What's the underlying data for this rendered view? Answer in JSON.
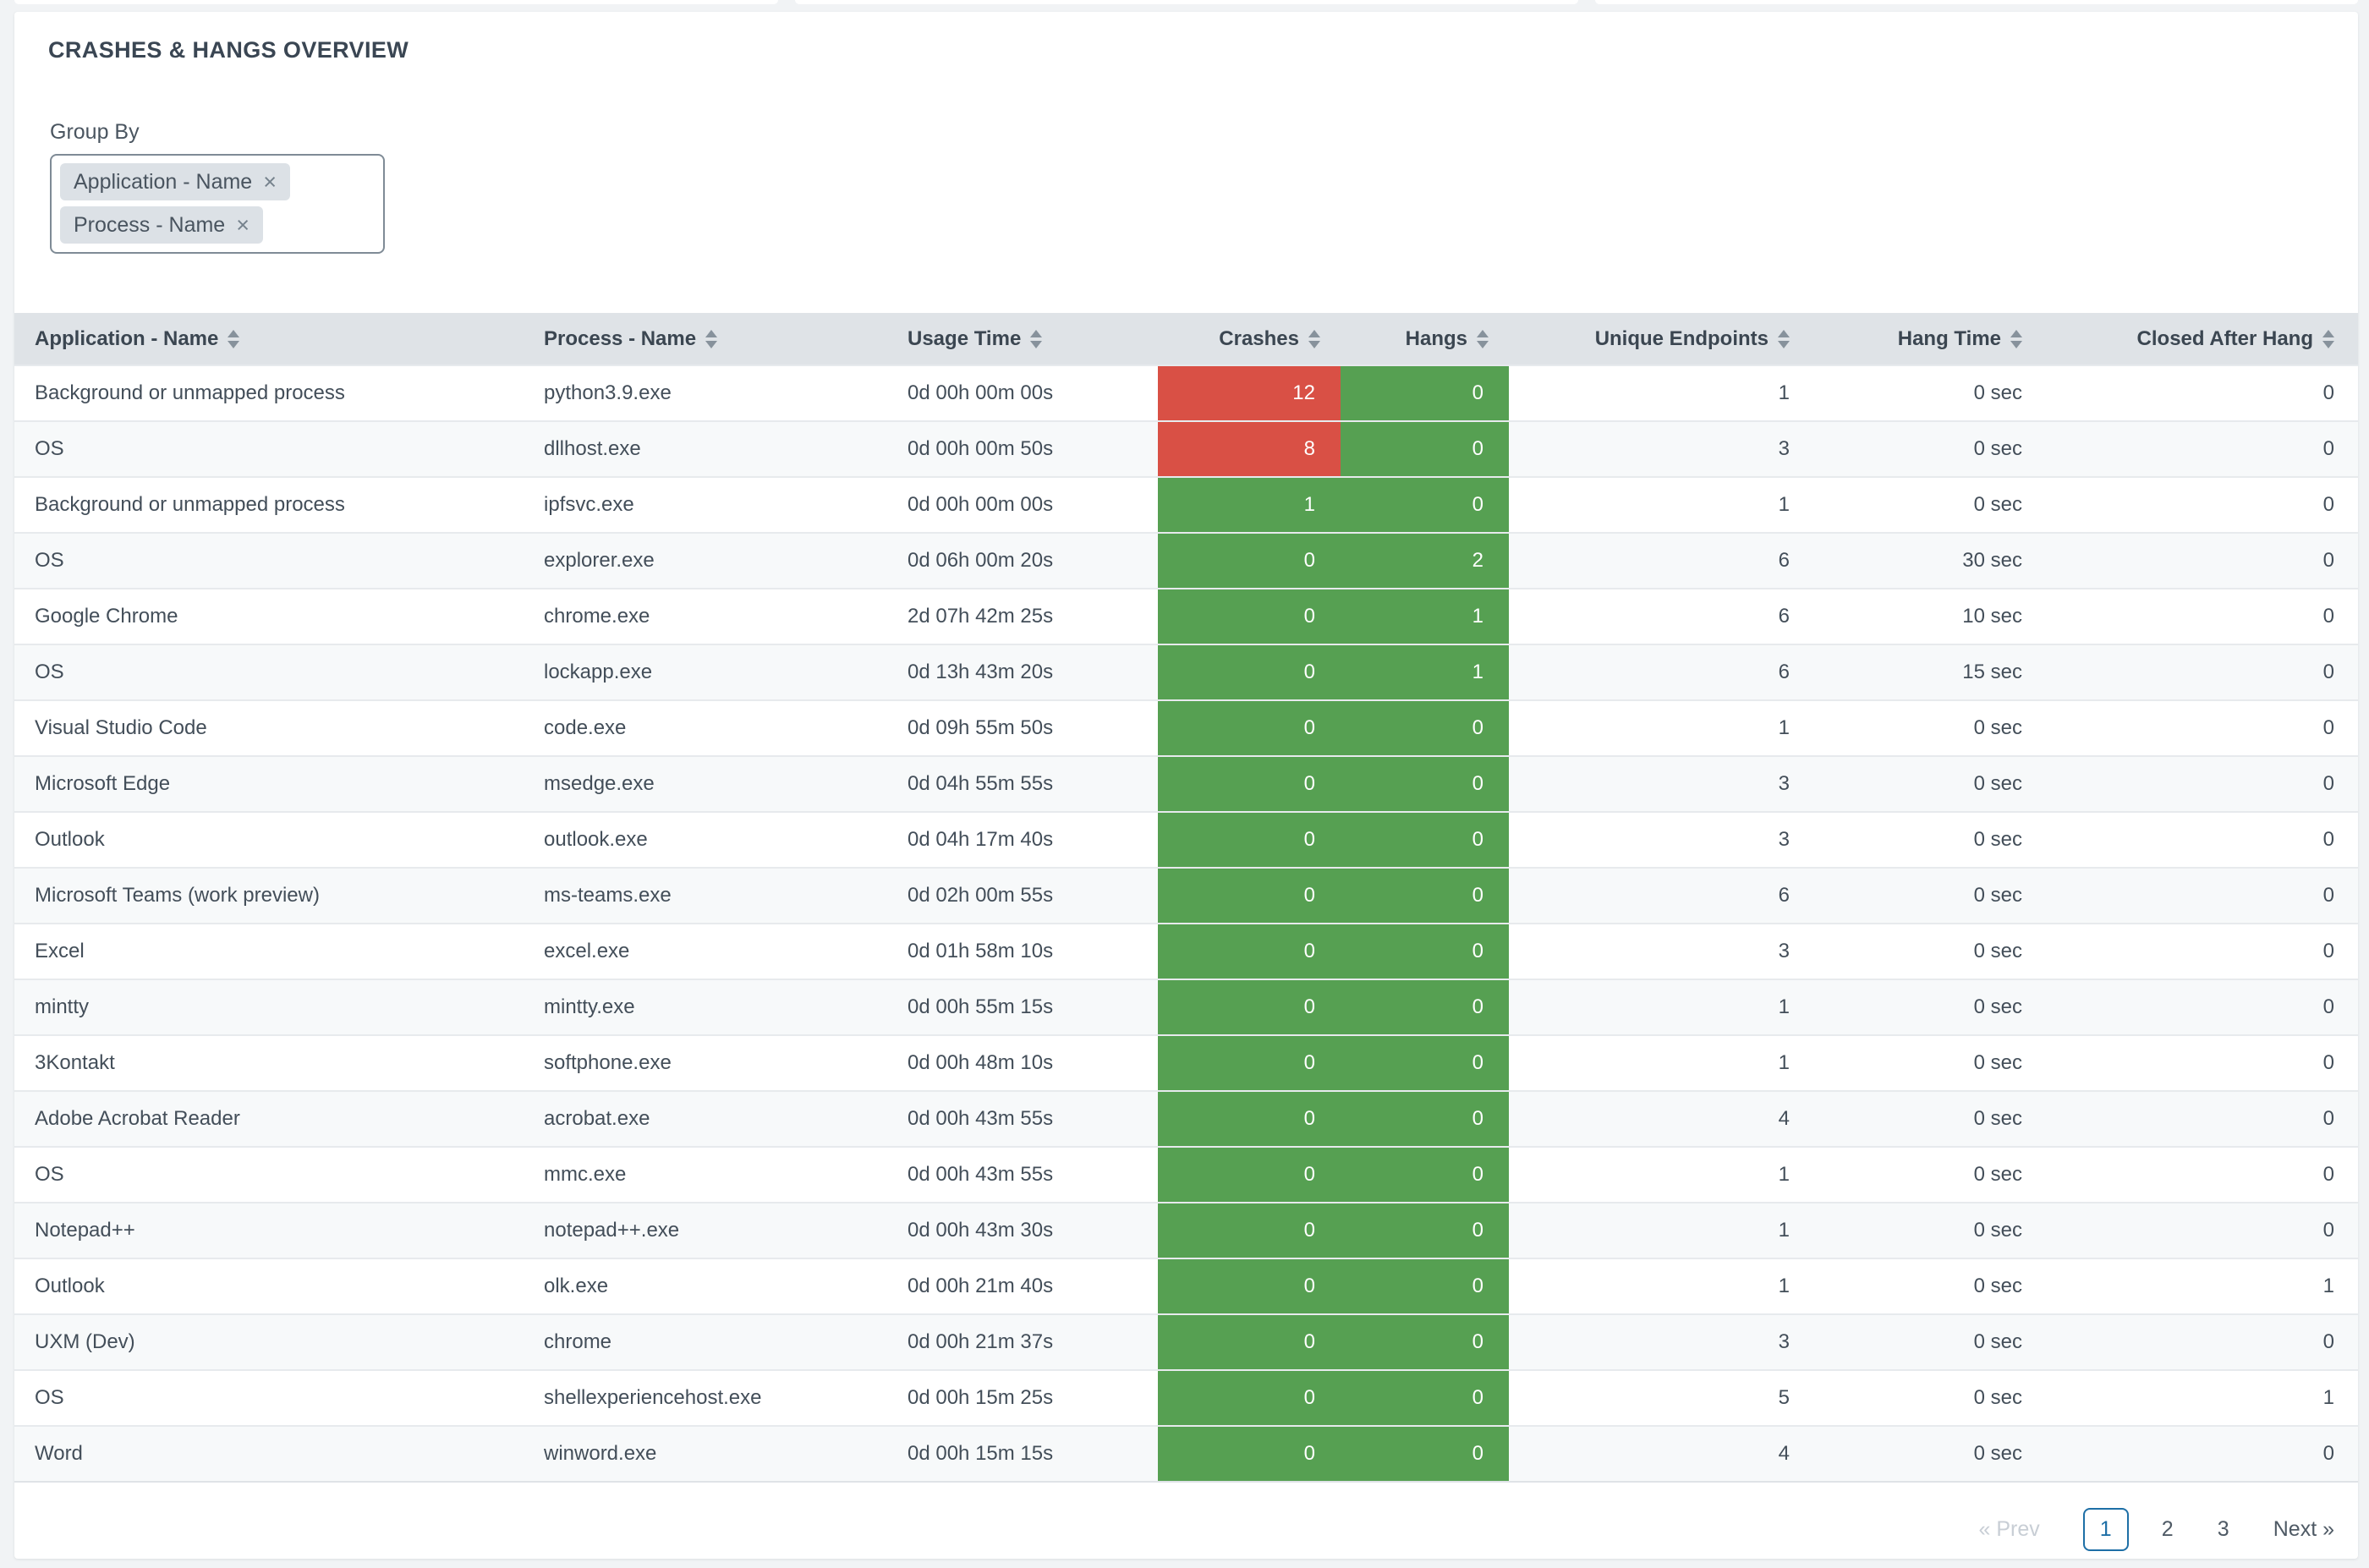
{
  "panel": {
    "title": "CRASHES & HANGS OVERVIEW"
  },
  "group_by": {
    "label": "Group By",
    "tags": [
      {
        "label": "Application - Name",
        "remove_icon": "×"
      },
      {
        "label": "Process - Name",
        "remove_icon": "×"
      }
    ]
  },
  "table": {
    "columns": [
      {
        "label": "Application - Name",
        "key": "application-name",
        "field": "application",
        "align": "left",
        "sortable": true
      },
      {
        "label": "Process - Name",
        "key": "process-name",
        "field": "process",
        "align": "left",
        "sortable": true
      },
      {
        "label": "Usage Time",
        "key": "usage-time",
        "field": "usage_time",
        "align": "left",
        "sortable": true
      },
      {
        "label": "Crashes",
        "key": "crashes",
        "field": "crashes",
        "align": "right",
        "sortable": true
      },
      {
        "label": "Hangs",
        "key": "hangs",
        "field": "hangs",
        "align": "right",
        "sortable": true
      },
      {
        "label": "Unique Endpoints",
        "key": "unique-endpoints",
        "field": "unique_endpoints",
        "align": "right",
        "sortable": true
      },
      {
        "label": "Hang Time",
        "key": "hang-time",
        "field": "hang_time",
        "align": "right",
        "sortable": true
      },
      {
        "label": "Closed After Hang",
        "key": "closed-after-hang",
        "field": "closed_after_hang",
        "align": "right",
        "sortable": true
      }
    ],
    "rows": [
      {
        "application": "Background or unmapped process",
        "process": "python3.9.exe",
        "usage_time": "0d 00h 00m 00s",
        "crashes": "12",
        "crashes_status": "alert",
        "hangs": "0",
        "hangs_status": "ok",
        "unique_endpoints": "1",
        "hang_time": "0 sec",
        "closed_after_hang": "0"
      },
      {
        "application": "OS",
        "process": "dllhost.exe",
        "usage_time": "0d 00h 00m 50s",
        "crashes": "8",
        "crashes_status": "alert",
        "hangs": "0",
        "hangs_status": "ok",
        "unique_endpoints": "3",
        "hang_time": "0 sec",
        "closed_after_hang": "0"
      },
      {
        "application": "Background or unmapped process",
        "process": "ipfsvc.exe",
        "usage_time": "0d 00h 00m 00s",
        "crashes": "1",
        "crashes_status": "ok",
        "hangs": "0",
        "hangs_status": "ok",
        "unique_endpoints": "1",
        "hang_time": "0 sec",
        "closed_after_hang": "0"
      },
      {
        "application": "OS",
        "process": "explorer.exe",
        "usage_time": "0d 06h 00m 20s",
        "crashes": "0",
        "crashes_status": "ok",
        "hangs": "2",
        "hangs_status": "ok",
        "unique_endpoints": "6",
        "hang_time": "30 sec",
        "closed_after_hang": "0"
      },
      {
        "application": "Google Chrome",
        "process": "chrome.exe",
        "usage_time": "2d 07h 42m 25s",
        "crashes": "0",
        "crashes_status": "ok",
        "hangs": "1",
        "hangs_status": "ok",
        "unique_endpoints": "6",
        "hang_time": "10 sec",
        "closed_after_hang": "0"
      },
      {
        "application": "OS",
        "process": "lockapp.exe",
        "usage_time": "0d 13h 43m 20s",
        "crashes": "0",
        "crashes_status": "ok",
        "hangs": "1",
        "hangs_status": "ok",
        "unique_endpoints": "6",
        "hang_time": "15 sec",
        "closed_after_hang": "0"
      },
      {
        "application": "Visual Studio Code",
        "process": "code.exe",
        "usage_time": "0d 09h 55m 50s",
        "crashes": "0",
        "crashes_status": "ok",
        "hangs": "0",
        "hangs_status": "ok",
        "unique_endpoints": "1",
        "hang_time": "0 sec",
        "closed_after_hang": "0"
      },
      {
        "application": "Microsoft Edge",
        "process": "msedge.exe",
        "usage_time": "0d 04h 55m 55s",
        "crashes": "0",
        "crashes_status": "ok",
        "hangs": "0",
        "hangs_status": "ok",
        "unique_endpoints": "3",
        "hang_time": "0 sec",
        "closed_after_hang": "0"
      },
      {
        "application": "Outlook",
        "process": "outlook.exe",
        "usage_time": "0d 04h 17m 40s",
        "crashes": "0",
        "crashes_status": "ok",
        "hangs": "0",
        "hangs_status": "ok",
        "unique_endpoints": "3",
        "hang_time": "0 sec",
        "closed_after_hang": "0"
      },
      {
        "application": "Microsoft Teams (work preview)",
        "process": "ms-teams.exe",
        "usage_time": "0d 02h 00m 55s",
        "crashes": "0",
        "crashes_status": "ok",
        "hangs": "0",
        "hangs_status": "ok",
        "unique_endpoints": "6",
        "hang_time": "0 sec",
        "closed_after_hang": "0"
      },
      {
        "application": "Excel",
        "process": "excel.exe",
        "usage_time": "0d 01h 58m 10s",
        "crashes": "0",
        "crashes_status": "ok",
        "hangs": "0",
        "hangs_status": "ok",
        "unique_endpoints": "3",
        "hang_time": "0 sec",
        "closed_after_hang": "0"
      },
      {
        "application": "mintty",
        "process": "mintty.exe",
        "usage_time": "0d 00h 55m 15s",
        "crashes": "0",
        "crashes_status": "ok",
        "hangs": "0",
        "hangs_status": "ok",
        "unique_endpoints": "1",
        "hang_time": "0 sec",
        "closed_after_hang": "0"
      },
      {
        "application": "3Kontakt",
        "process": "softphone.exe",
        "usage_time": "0d 00h 48m 10s",
        "crashes": "0",
        "crashes_status": "ok",
        "hangs": "0",
        "hangs_status": "ok",
        "unique_endpoints": "1",
        "hang_time": "0 sec",
        "closed_after_hang": "0"
      },
      {
        "application": "Adobe Acrobat Reader",
        "process": "acrobat.exe",
        "usage_time": "0d 00h 43m 55s",
        "crashes": "0",
        "crashes_status": "ok",
        "hangs": "0",
        "hangs_status": "ok",
        "unique_endpoints": "4",
        "hang_time": "0 sec",
        "closed_after_hang": "0"
      },
      {
        "application": "OS",
        "process": "mmc.exe",
        "usage_time": "0d 00h 43m 55s",
        "crashes": "0",
        "crashes_status": "ok",
        "hangs": "0",
        "hangs_status": "ok",
        "unique_endpoints": "1",
        "hang_time": "0 sec",
        "closed_after_hang": "0"
      },
      {
        "application": "Notepad++",
        "process": "notepad++.exe",
        "usage_time": "0d 00h 43m 30s",
        "crashes": "0",
        "crashes_status": "ok",
        "hangs": "0",
        "hangs_status": "ok",
        "unique_endpoints": "1",
        "hang_time": "0 sec",
        "closed_after_hang": "0"
      },
      {
        "application": "Outlook",
        "process": "olk.exe",
        "usage_time": "0d 00h 21m 40s",
        "crashes": "0",
        "crashes_status": "ok",
        "hangs": "0",
        "hangs_status": "ok",
        "unique_endpoints": "1",
        "hang_time": "0 sec",
        "closed_after_hang": "1"
      },
      {
        "application": "UXM (Dev)",
        "process": "chrome",
        "usage_time": "0d 00h 21m 37s",
        "crashes": "0",
        "crashes_status": "ok",
        "hangs": "0",
        "hangs_status": "ok",
        "unique_endpoints": "3",
        "hang_time": "0 sec",
        "closed_after_hang": "0"
      },
      {
        "application": "OS",
        "process": "shellexperiencehost.exe",
        "usage_time": "0d 00h 15m 25s",
        "crashes": "0",
        "crashes_status": "ok",
        "hangs": "0",
        "hangs_status": "ok",
        "unique_endpoints": "5",
        "hang_time": "0 sec",
        "closed_after_hang": "1"
      },
      {
        "application": "Word",
        "process": "winword.exe",
        "usage_time": "0d 00h 15m 15s",
        "crashes": "0",
        "crashes_status": "ok",
        "hangs": "0",
        "hangs_status": "ok",
        "unique_endpoints": "4",
        "hang_time": "0 sec",
        "closed_after_hang": "0"
      }
    ]
  },
  "pagination": {
    "prev_label": "« Prev",
    "next_label": "Next »",
    "pages": [
      {
        "label": "1",
        "active": true
      },
      {
        "label": "2",
        "active": false
      },
      {
        "label": "3",
        "active": false
      }
    ]
  },
  "colors": {
    "crash_alert_red": "#d95045",
    "ok_green": "#56a052",
    "pagination_active_blue": "#1e6fa6"
  }
}
